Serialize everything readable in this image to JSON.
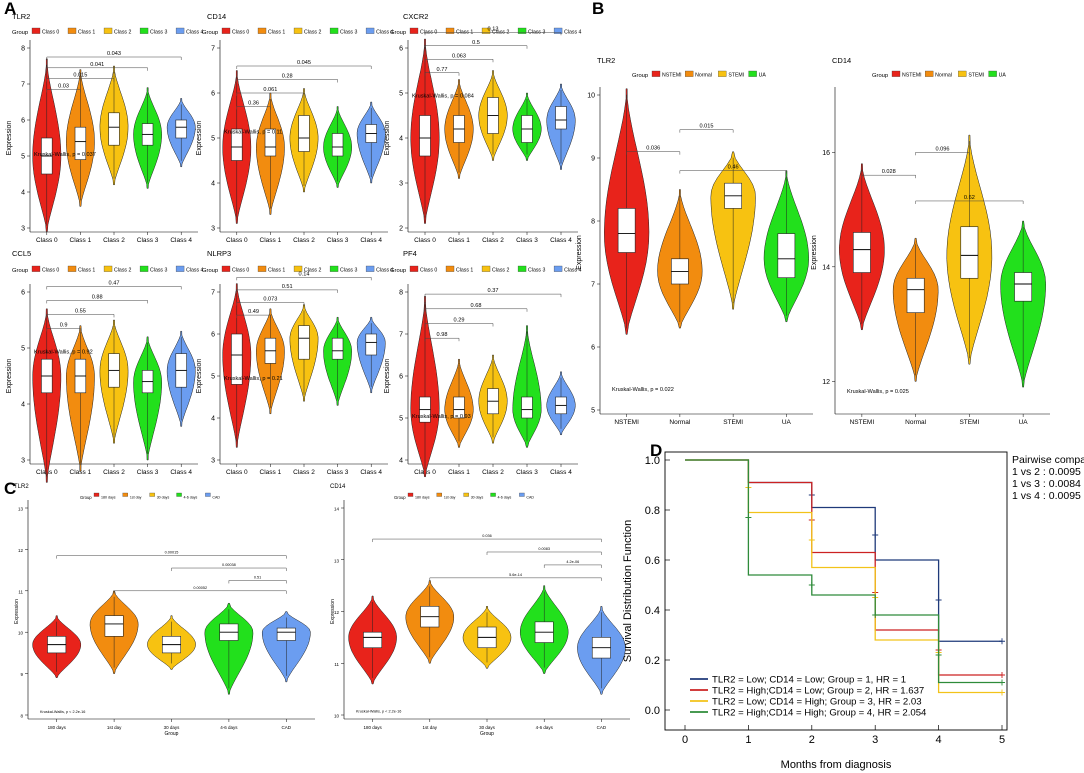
{
  "figure": {
    "panel_labels": [
      "A",
      "B",
      "C",
      "D"
    ]
  },
  "legend_group_label": "Group",
  "colors": {
    "red": "#e8231b",
    "orange": "#f28c0f",
    "yellow": "#f7c211",
    "green": "#22e01c",
    "blue": "#6b9df0",
    "km_navy": "#1f3a7a",
    "km_red": "#cc2222",
    "km_yellow": "#f2c31a",
    "km_green": "#2e8b3a"
  },
  "chart_data": [
    {
      "id": "A_TLR2",
      "panel": "A",
      "type": "violin",
      "title": "TLR2",
      "ylabel": "Expression",
      "ylim": [
        3,
        8
      ],
      "yticks": [
        3,
        4,
        5,
        6,
        7,
        8
      ],
      "groups": [
        "Class 0",
        "Class 1",
        "Class 2",
        "Class 3",
        "Class 4"
      ],
      "medians": [
        5.0,
        5.4,
        5.8,
        5.6,
        5.8
      ],
      "q1": [
        4.5,
        4.9,
        5.3,
        5.3,
        5.5
      ],
      "q3": [
        5.5,
        5.8,
        6.2,
        5.9,
        6.0
      ],
      "dmin": [
        2.9,
        3.6,
        4.2,
        4.1,
        4.7
      ],
      "dmax": [
        7.7,
        7.4,
        7.5,
        6.9,
        6.6
      ],
      "pvalues": [
        {
          "label": "0.03",
          "from": 0,
          "to": 1,
          "y": 6.85
        },
        {
          "label": "0.015",
          "from": 0,
          "to": 2,
          "y": 7.15
        },
        {
          "label": "0.041",
          "from": 0,
          "to": 3,
          "y": 7.45
        },
        {
          "label": "0.043",
          "from": 0,
          "to": 4,
          "y": 7.75
        }
      ],
      "test_label": "Kruskal-Wallis, p = 0.037",
      "test_y": 5.0
    },
    {
      "id": "A_CD14",
      "panel": "A",
      "type": "violin",
      "title": "CD14",
      "ylabel": "Expression",
      "ylim": [
        3,
        7
      ],
      "yticks": [
        3,
        4,
        5,
        6,
        7
      ],
      "groups": [
        "Class 0",
        "Class 1",
        "Class 2",
        "Class 3",
        "Class 4"
      ],
      "medians": [
        4.8,
        4.8,
        5.0,
        4.8,
        5.1
      ],
      "q1": [
        4.5,
        4.6,
        4.7,
        4.6,
        4.9
      ],
      "q3": [
        5.2,
        5.2,
        5.5,
        5.1,
        5.3
      ],
      "dmin": [
        3.1,
        3.3,
        3.8,
        3.9,
        4.0
      ],
      "dmax": [
        6.5,
        6.0,
        6.1,
        5.7,
        5.8
      ],
      "pvalues": [
        {
          "label": "0.36",
          "from": 0,
          "to": 1,
          "y": 5.7
        },
        {
          "label": "0.061",
          "from": 0,
          "to": 2,
          "y": 6.0
        },
        {
          "label": "0.28",
          "from": 0,
          "to": 3,
          "y": 6.3
        },
        {
          "label": "0.045",
          "from": 0,
          "to": 4,
          "y": 6.6
        }
      ],
      "test_label": "Kruskal-Wallis, p = 0.11",
      "test_y": 5.1
    },
    {
      "id": "A_CXCR2",
      "panel": "A",
      "type": "violin",
      "title": "CXCR2",
      "ylabel": "Expression",
      "ylim": [
        2,
        6
      ],
      "yticks": [
        2,
        3,
        4,
        5,
        6
      ],
      "groups": [
        "Class 0",
        "Class 1",
        "Class 2",
        "Class 3",
        "Class 4"
      ],
      "medians": [
        4.0,
        4.2,
        4.5,
        4.2,
        4.4
      ],
      "q1": [
        3.6,
        3.9,
        4.1,
        3.9,
        4.2
      ],
      "q3": [
        4.5,
        4.5,
        4.9,
        4.5,
        4.7
      ],
      "dmin": [
        2.1,
        3.1,
        3.5,
        3.5,
        3.3
      ],
      "dmax": [
        6.2,
        5.3,
        5.5,
        5.0,
        5.2
      ],
      "pvalues": [
        {
          "label": "0.77",
          "from": 0,
          "to": 1,
          "y": 5.45
        },
        {
          "label": "0.063",
          "from": 0,
          "to": 2,
          "y": 5.75
        },
        {
          "label": "0.5",
          "from": 0,
          "to": 3,
          "y": 6.05
        },
        {
          "label": "0.13",
          "from": 0,
          "to": 4,
          "y": 6.35
        }
      ],
      "test_label": "Kruskal-Wallis, p = 0.084",
      "test_y": 4.9
    },
    {
      "id": "A_CCL5",
      "panel": "A",
      "type": "violin",
      "title": "CCL5",
      "ylabel": "Expression",
      "ylim": [
        3,
        6
      ],
      "yticks": [
        3,
        4,
        5,
        6
      ],
      "groups": [
        "Class 0",
        "Class 1",
        "Class 2",
        "Class 3",
        "Class 4"
      ],
      "medians": [
        4.5,
        4.5,
        4.6,
        4.4,
        4.6
      ],
      "q1": [
        4.2,
        4.2,
        4.3,
        4.2,
        4.3
      ],
      "q3": [
        4.8,
        4.8,
        4.9,
        4.6,
        4.9
      ],
      "dmin": [
        2.6,
        2.8,
        3.3,
        3.0,
        3.6
      ],
      "dmax": [
        5.7,
        5.4,
        5.5,
        5.2,
        5.3
      ],
      "pvalues": [
        {
          "label": "0.9",
          "from": 0,
          "to": 1,
          "y": 5.35
        },
        {
          "label": "0.55",
          "from": 0,
          "to": 2,
          "y": 5.6
        },
        {
          "label": "0.88",
          "from": 0,
          "to": 3,
          "y": 5.85
        },
        {
          "label": "0.47",
          "from": 0,
          "to": 4,
          "y": 6.1
        }
      ],
      "test_label": "Kruskal-Wallis, p = 0.92",
      "test_y": 4.9
    },
    {
      "id": "A_NLRP3",
      "panel": "A",
      "type": "violin",
      "title": "NLRP3",
      "ylabel": "Expression",
      "ylim": [
        3,
        7
      ],
      "yticks": [
        3,
        4,
        5,
        6,
        7
      ],
      "groups": [
        "Class 0",
        "Class 1",
        "Class 2",
        "Class 3",
        "Class 4"
      ],
      "medians": [
        5.5,
        5.6,
        5.9,
        5.6,
        5.8
      ],
      "q1": [
        4.8,
        5.3,
        5.4,
        5.4,
        5.5
      ],
      "q3": [
        6.0,
        5.9,
        6.2,
        5.9,
        6.0
      ],
      "dmin": [
        3.3,
        4.1,
        4.4,
        4.3,
        4.6
      ],
      "dmax": [
        7.2,
        6.6,
        6.7,
        6.4,
        6.4
      ],
      "pvalues": [
        {
          "label": "0.49",
          "from": 0,
          "to": 1,
          "y": 6.45
        },
        {
          "label": "0.073",
          "from": 0,
          "to": 2,
          "y": 6.75
        },
        {
          "label": "0.51",
          "from": 0,
          "to": 3,
          "y": 7.05
        },
        {
          "label": "0.14",
          "from": 0,
          "to": 4,
          "y": 7.35
        }
      ],
      "test_label": "Kruskal-Wallis, p = 0.21",
      "test_y": 4.9
    },
    {
      "id": "A_PF4",
      "panel": "A",
      "type": "violin",
      "title": "PF4",
      "ylabel": "Expression",
      "ylim": [
        4,
        8
      ],
      "yticks": [
        4,
        5,
        6,
        7,
        8
      ],
      "groups": [
        "Class 0",
        "Class 1",
        "Class 2",
        "Class 3",
        "Class 4"
      ],
      "medians": [
        5.2,
        5.2,
        5.4,
        5.2,
        5.3
      ],
      "q1": [
        4.9,
        5.0,
        5.1,
        5.0,
        5.1
      ],
      "q3": [
        5.5,
        5.5,
        5.7,
        5.5,
        5.5
      ],
      "dmin": [
        3.6,
        4.3,
        4.4,
        4.3,
        4.6
      ],
      "dmax": [
        7.9,
        6.4,
        6.5,
        7.2,
        6.1
      ],
      "pvalues": [
        {
          "label": "0.98",
          "from": 0,
          "to": 1,
          "y": 6.9
        },
        {
          "label": "0.29",
          "from": 0,
          "to": 2,
          "y": 7.25
        },
        {
          "label": "0.68",
          "from": 0,
          "to": 3,
          "y": 7.6
        },
        {
          "label": "0.37",
          "from": 0,
          "to": 4,
          "y": 7.95
        }
      ],
      "test_label": "Kruskal-Wallis, p = 0.93",
      "test_y": 5.0
    },
    {
      "id": "B_TLR2",
      "panel": "B",
      "type": "violin",
      "title": "TLR2",
      "ylabel": "Expression",
      "ylim": [
        5,
        10
      ],
      "yticks": [
        5,
        6,
        7,
        8,
        9,
        10
      ],
      "groups": [
        "NSTEMI",
        "Normal",
        "STEMI",
        "UA"
      ],
      "medians": [
        7.8,
        7.2,
        8.4,
        7.4
      ],
      "q1": [
        7.5,
        7.0,
        8.2,
        7.1
      ],
      "q3": [
        8.2,
        7.4,
        8.6,
        7.8
      ],
      "dmin": [
        6.2,
        6.3,
        6.6,
        6.4
      ],
      "dmax": [
        10.1,
        8.5,
        9.1,
        8.8
      ],
      "pvalues": [
        {
          "label": "0.036",
          "from": 0,
          "to": 1,
          "y": 9.1
        },
        {
          "label": "0.015",
          "from": 1,
          "to": 2,
          "y": 9.45
        },
        {
          "label": "0.46",
          "from": 1,
          "to": 3,
          "y": 8.8
        }
      ],
      "test_label": "Kruskal-Wallis, p = 0.022",
      "test_y": 5.3
    },
    {
      "id": "B_CD14",
      "panel": "B",
      "type": "violin",
      "title": "CD14",
      "ylabel": "Expression",
      "ylim": [
        11.5,
        17
      ],
      "yticks": [
        12,
        14,
        16
      ],
      "groups": [
        "NSTEMI",
        "Normal",
        "STEMI",
        "UA"
      ],
      "medians": [
        14.3,
        13.6,
        14.2,
        13.7
      ],
      "q1": [
        13.9,
        13.2,
        13.8,
        13.4
      ],
      "q3": [
        14.6,
        13.8,
        14.7,
        13.9
      ],
      "dmin": [
        12.9,
        12.0,
        12.3,
        11.9
      ],
      "dmax": [
        15.8,
        14.5,
        16.3,
        14.8
      ],
      "pvalues": [
        {
          "label": "0.028",
          "from": 0,
          "to": 1,
          "y": 15.6
        },
        {
          "label": "0.096",
          "from": 1,
          "to": 2,
          "y": 16.0
        },
        {
          "label": "0.62",
          "from": 1,
          "to": 3,
          "y": 15.15
        }
      ],
      "test_label": "Kruskal-Wallis, p = 0.025",
      "test_y": 11.8
    },
    {
      "id": "C_TLR2",
      "panel": "C",
      "type": "violin",
      "title": "TLR2",
      "ylabel": "Expression",
      "xlabel": "Group",
      "ylim": [
        8,
        13
      ],
      "yticks": [
        8,
        9,
        10,
        11,
        12,
        13
      ],
      "groups": [
        "180 days",
        "1st day",
        "30 days",
        "4-6 days",
        "CAD"
      ],
      "medians": [
        9.7,
        10.2,
        9.7,
        10.0,
        10.0
      ],
      "q1": [
        9.5,
        9.9,
        9.5,
        9.8,
        9.8
      ],
      "q3": [
        9.9,
        10.4,
        9.9,
        10.2,
        10.1
      ],
      "dmin": [
        8.9,
        9.0,
        9.1,
        8.5,
        8.8
      ],
      "dmax": [
        10.4,
        11.0,
        10.4,
        10.7,
        10.5
      ],
      "pvalues": [
        {
          "label": "0.00052",
          "from": 1,
          "to": 4,
          "y": 11.0
        },
        {
          "label": "0.51",
          "from": 3,
          "to": 4,
          "y": 11.25
        },
        {
          "label": "0.00038",
          "from": 2,
          "to": 4,
          "y": 11.55
        },
        {
          "label": "0.00015",
          "from": 0,
          "to": 4,
          "y": 11.85
        }
      ],
      "test_label": "Kruskal-Wallis, p < 2.2e-16",
      "test_y": 8.05
    },
    {
      "id": "C_CD14",
      "panel": "C",
      "type": "violin",
      "title": "CD14",
      "ylabel": "Expression",
      "xlabel": "Group",
      "ylim": [
        10,
        14
      ],
      "yticks": [
        10,
        11,
        12,
        13,
        14
      ],
      "groups": [
        "180 days",
        "1st day",
        "30 days",
        "4-6 days",
        "CAD"
      ],
      "medians": [
        11.5,
        11.9,
        11.5,
        11.6,
        11.3
      ],
      "q1": [
        11.3,
        11.7,
        11.3,
        11.4,
        11.1
      ],
      "q3": [
        11.6,
        12.1,
        11.7,
        11.8,
        11.5
      ],
      "dmin": [
        10.6,
        11.0,
        10.9,
        10.8,
        10.4
      ],
      "dmax": [
        12.3,
        12.6,
        12.1,
        12.5,
        12.1
      ],
      "pvalues": [
        {
          "label": "5.6e-14",
          "from": 1,
          "to": 4,
          "y": 12.65
        },
        {
          "label": "4.2e-06",
          "from": 3,
          "to": 4,
          "y": 12.9
        },
        {
          "label": "0.0083",
          "from": 2,
          "to": 4,
          "y": 13.15
        },
        {
          "label": "0.036",
          "from": 0,
          "to": 4,
          "y": 13.4
        }
      ],
      "test_label": "Kruskal-Wallis, p < 2.2e-16",
      "test_y": 10.05
    },
    {
      "id": "D_KM",
      "panel": "D",
      "type": "line",
      "ylabel": "Survival Distribution Function",
      "xlabel": "Months from diagnosis",
      "xlim": [
        0,
        5
      ],
      "ylim": [
        0,
        1
      ],
      "xticks": [
        0,
        1,
        2,
        3,
        4,
        5
      ],
      "yticks": [
        "0.0",
        "0.2",
        "0.4",
        "0.6",
        "0.8",
        "1.0"
      ],
      "pairwise": {
        "title": "Pairwise comparison",
        "rows": [
          "1 vs 2 : 0.0095",
          "1 vs 3 : 0.0084",
          "1 vs 4 : 0.0095"
        ]
      },
      "series": [
        {
          "name": "TLR2 = Low; CD14 = Low;  Group = 1, HR = 1",
          "color_key": "km_navy",
          "steps": [
            [
              0,
              1.0
            ],
            [
              1,
              0.91
            ],
            [
              2,
              0.81
            ],
            [
              3,
              0.6
            ],
            [
              4,
              0.275
            ],
            [
              5,
              0.275
            ]
          ],
          "censors": [
            [
              2,
              0.86
            ],
            [
              3,
              0.7
            ],
            [
              4,
              0.44
            ],
            [
              5,
              0.275
            ]
          ]
        },
        {
          "name": "TLR2 = High;CD14 = Low;  Group = 2, HR = 1.637",
          "color_key": "km_red",
          "steps": [
            [
              0,
              1.0
            ],
            [
              1,
              0.91
            ],
            [
              2,
              0.63
            ],
            [
              3,
              0.32
            ],
            [
              4,
              0.14
            ],
            [
              5,
              0.14
            ]
          ],
          "censors": [
            [
              2,
              0.76
            ],
            [
              3,
              0.47
            ],
            [
              4,
              0.24
            ],
            [
              5,
              0.14
            ]
          ]
        },
        {
          "name": "TLR2 = Low; CD14 = High; Group = 3, HR = 2.03",
          "color_key": "km_yellow",
          "steps": [
            [
              0,
              1.0
            ],
            [
              1,
              0.79
            ],
            [
              2,
              0.57
            ],
            [
              3,
              0.28
            ],
            [
              4,
              0.07
            ],
            [
              5,
              0.07
            ]
          ],
          "censors": [
            [
              1,
              0.89
            ],
            [
              2,
              0.68
            ],
            [
              3,
              0.45
            ],
            [
              4,
              0.23
            ],
            [
              5,
              0.07
            ]
          ]
        },
        {
          "name": "TLR2 = High;CD14 = High; Group = 4, HR = 2.054",
          "color_key": "km_green",
          "steps": [
            [
              0,
              1.0
            ],
            [
              1,
              0.54
            ],
            [
              2,
              0.46
            ],
            [
              3,
              0.38
            ],
            [
              4,
              0.11
            ],
            [
              5,
              0.11
            ]
          ],
          "censors": [
            [
              1,
              0.77
            ],
            [
              2,
              0.5
            ],
            [
              3,
              0.38
            ],
            [
              4,
              0.22
            ],
            [
              5,
              0.11
            ]
          ]
        }
      ]
    }
  ]
}
